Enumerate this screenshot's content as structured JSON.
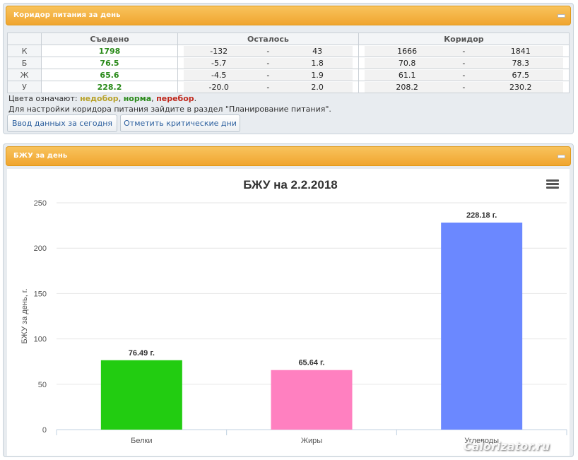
{
  "corridor_panel": {
    "title": "Коридор питания за день",
    "headers": {
      "eaten": "Съедено",
      "remaining": "Осталось",
      "corridor": "Коридор"
    },
    "rows": [
      {
        "label": "К",
        "eaten": "1798",
        "rem_min": "-132",
        "rem_max": "43",
        "cor_min": "1666",
        "cor_max": "1841"
      },
      {
        "label": "Б",
        "eaten": "76.5",
        "rem_min": "-5.7",
        "rem_max": "1.8",
        "cor_min": "70.8",
        "cor_max": "78.3"
      },
      {
        "label": "Ж",
        "eaten": "65.6",
        "rem_min": "-4.5",
        "rem_max": "1.9",
        "cor_min": "61.1",
        "cor_max": "67.5"
      },
      {
        "label": "У",
        "eaten": "228.2",
        "rem_min": "-20.0",
        "rem_max": "2.0",
        "cor_min": "208.2",
        "cor_max": "230.2"
      }
    ],
    "range_sep": "-",
    "legend_prefix": "Цвета означают: ",
    "legend_low": "недобор",
    "legend_sep1": ", ",
    "legend_norm": "норма",
    "legend_sep2": ", ",
    "legend_over": "перебор",
    "legend_end": ".",
    "info": "Для настройки коридора питания зайдите в раздел \"Планирование питания\".",
    "btn_enter": "Ввод данных за сегодня",
    "btn_critical": "Отметить критические дни"
  },
  "bju_panel": {
    "title": "БЖУ за день",
    "watermark": "Calorizator.ru"
  },
  "chart_data": {
    "type": "bar",
    "title": "БЖУ на 2.2.2018",
    "ylabel": "БЖУ за день, г.",
    "xlabel": "",
    "categories": [
      "Белки",
      "Жиры",
      "Углеводы"
    ],
    "values": [
      76.49,
      65.64,
      228.18
    ],
    "data_labels": [
      "76.49 г.",
      "65.64 г.",
      "228.18 г."
    ],
    "colors": [
      "#22cc11",
      "#ff80c0",
      "#6b88ff"
    ],
    "ylim": [
      0,
      250
    ],
    "yticks": [
      "0",
      "50",
      "100",
      "150",
      "200",
      "250"
    ],
    "grid": true,
    "legend": "none"
  }
}
